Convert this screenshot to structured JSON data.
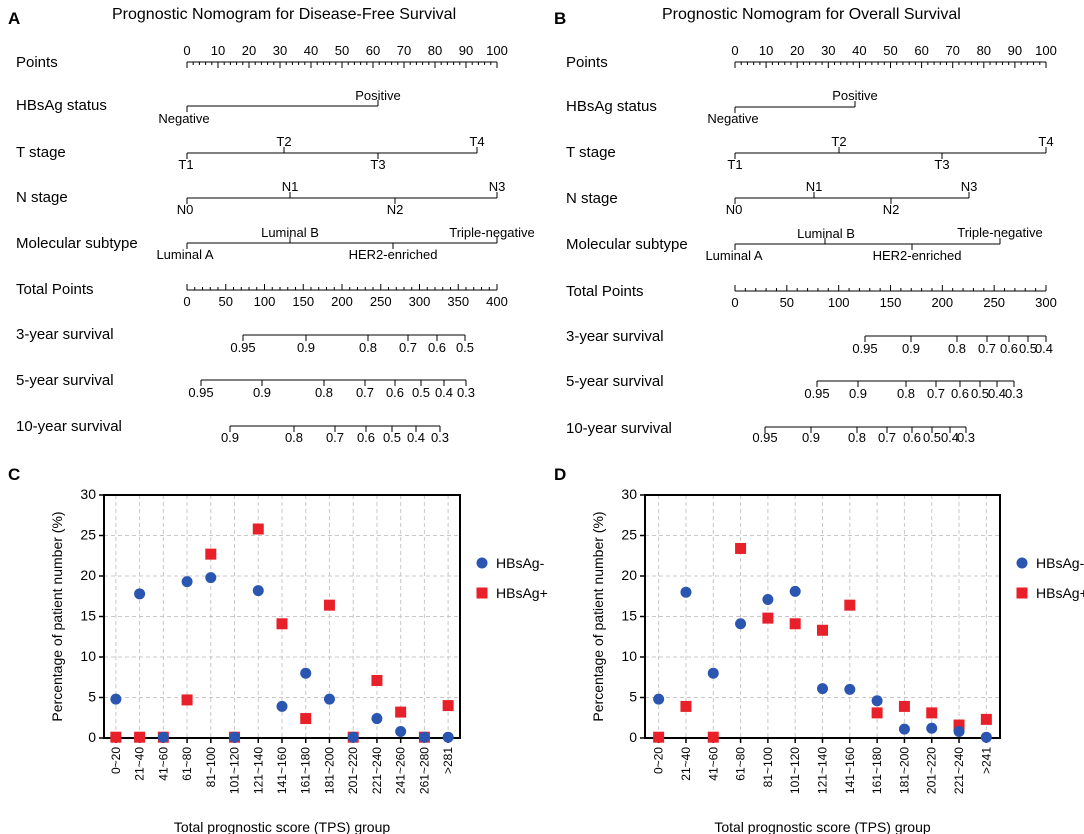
{
  "panels": {
    "A": {
      "letter": "A",
      "title": "Prognostic Nomogram for Disease-Free Survival",
      "rows": {
        "points": "Points",
        "hbsag": "HBsAg status",
        "tstage": "T stage",
        "nstage": "N stage",
        "molecular": "Molecular subtype",
        "total": "Total Points",
        "s3": "3-year survival",
        "s5": "5-year survival",
        "s10": "10-year survival"
      },
      "points_ticks": [
        "0",
        "10",
        "20",
        "30",
        "40",
        "50",
        "60",
        "70",
        "80",
        "90",
        "100"
      ],
      "hbsag": {
        "neg": "Negative",
        "pos": "Positive"
      },
      "t": {
        "t1": "T1",
        "t2": "T2",
        "t3": "T3",
        "t4": "T4"
      },
      "n": {
        "n0": "N0",
        "n1": "N1",
        "n2": "N2",
        "n3": "N3"
      },
      "mol": {
        "la": "Luminal A",
        "lb": "Luminal B",
        "her2": "HER2-enriched",
        "tn": "Triple-negative"
      },
      "total_ticks": [
        "0",
        "50",
        "100",
        "150",
        "200",
        "250",
        "300",
        "350",
        "400"
      ],
      "s3_ticks": [
        "0.95",
        "0.9",
        "0.8",
        "0.7",
        "0.6",
        "0.5"
      ],
      "s5_ticks": [
        "0.95",
        "0.9",
        "0.8",
        "0.7",
        "0.6",
        "0.5",
        "0.4",
        "0.3"
      ],
      "s10_ticks": [
        "0.9",
        "0.8",
        "0.7",
        "0.6",
        "0.5",
        "0.4",
        "0.3"
      ]
    },
    "B": {
      "letter": "B",
      "title": "Prognostic Nomogram for Overall Survival",
      "rows": {
        "points": "Points",
        "hbsag": "HBsAg status",
        "tstage": "T stage",
        "nstage": "N stage",
        "molecular": "Molecular subtype",
        "total": "Total Points",
        "s3": "3-year survival",
        "s5": "5-year survival",
        "s10": "10-year survival"
      },
      "points_ticks": [
        "0",
        "10",
        "20",
        "30",
        "40",
        "50",
        "60",
        "70",
        "80",
        "90",
        "100"
      ],
      "hbsag": {
        "neg": "Negative",
        "pos": "Positive"
      },
      "t": {
        "t1": "T1",
        "t2": "T2",
        "t3": "T3",
        "t4": "T4"
      },
      "n": {
        "n0": "N0",
        "n1": "N1",
        "n2": "N2",
        "n3": "N3"
      },
      "mol": {
        "la": "Luminal A",
        "lb": "Luminal B",
        "her2": "HER2-enriched",
        "tn": "Triple-negative"
      },
      "total_ticks": [
        "0",
        "50",
        "100",
        "150",
        "200",
        "250",
        "300"
      ],
      "s3_ticks": [
        "0.95",
        "0.9",
        "0.8",
        "0.7",
        "0.6",
        "0.5",
        "0.4"
      ],
      "s5_ticks": [
        "0.95",
        "0.9",
        "0.8",
        "0.7",
        "0.6",
        "0.5",
        "0.4",
        "0.3"
      ],
      "s10_ticks": [
        "0.95",
        "0.9",
        "0.8",
        "0.7",
        "0.6",
        "0.5",
        "0.4",
        "0.3"
      ]
    },
    "C": {
      "letter": "C"
    },
    "D": {
      "letter": "D"
    }
  },
  "chart_data": [
    {
      "id": "C",
      "type": "scatter",
      "xlabel": "Total prognostic score (TPS) group",
      "ylabel": "Percentage of patient number (%)",
      "ylim": [
        0,
        30
      ],
      "yticks": [
        0,
        5,
        10,
        15,
        20,
        25,
        30
      ],
      "grid": true,
      "legend_position": "right",
      "categories": [
        "0~20",
        "21~40",
        "41~60",
        "61~80",
        "81~100",
        "101~120",
        "121~140",
        "141~160",
        "161~180",
        "181~200",
        "201~220",
        "221~240",
        "241~260",
        "261~280",
        ">281"
      ],
      "series": [
        {
          "name": "HBsAg-",
          "color": "#2a55b0",
          "marker": "circle",
          "values": [
            4.8,
            17.8,
            0.1,
            19.3,
            19.8,
            0.1,
            18.2,
            3.9,
            8.0,
            4.8,
            0.1,
            2.4,
            0.8,
            0.1,
            0.1
          ]
        },
        {
          "name": "HBsAg+",
          "color": "#e8202a",
          "marker": "square",
          "values": [
            0.1,
            0.1,
            0.1,
            4.7,
            22.7,
            0.1,
            25.8,
            14.1,
            2.4,
            16.4,
            0.1,
            7.1,
            3.2,
            0.1,
            4.0
          ]
        }
      ]
    },
    {
      "id": "D",
      "type": "scatter",
      "xlabel": "Total prognostic score (TPS) group",
      "ylabel": "Percentage of patient number (%)",
      "ylim": [
        0,
        30
      ],
      "yticks": [
        0,
        5,
        10,
        15,
        20,
        25,
        30
      ],
      "grid": true,
      "legend_position": "right",
      "categories": [
        "0~20",
        "21~40",
        "41~60",
        "61~80",
        "81~100",
        "101~120",
        "121~140",
        "141~160",
        "161~180",
        "181~200",
        "201~220",
        "221~240",
        ">241"
      ],
      "series": [
        {
          "name": "HBsAg-",
          "color": "#2a55b0",
          "marker": "circle",
          "values": [
            4.8,
            18.0,
            8.0,
            14.1,
            17.1,
            18.1,
            6.1,
            6.0,
            4.6,
            1.1,
            1.2,
            0.8,
            0.1
          ]
        },
        {
          "name": "HBsAg+",
          "color": "#e8202a",
          "marker": "square",
          "values": [
            0.1,
            3.9,
            0.1,
            23.4,
            14.8,
            14.1,
            13.3,
            16.4,
            3.1,
            3.9,
            3.1,
            1.6,
            2.3
          ]
        }
      ]
    }
  ]
}
